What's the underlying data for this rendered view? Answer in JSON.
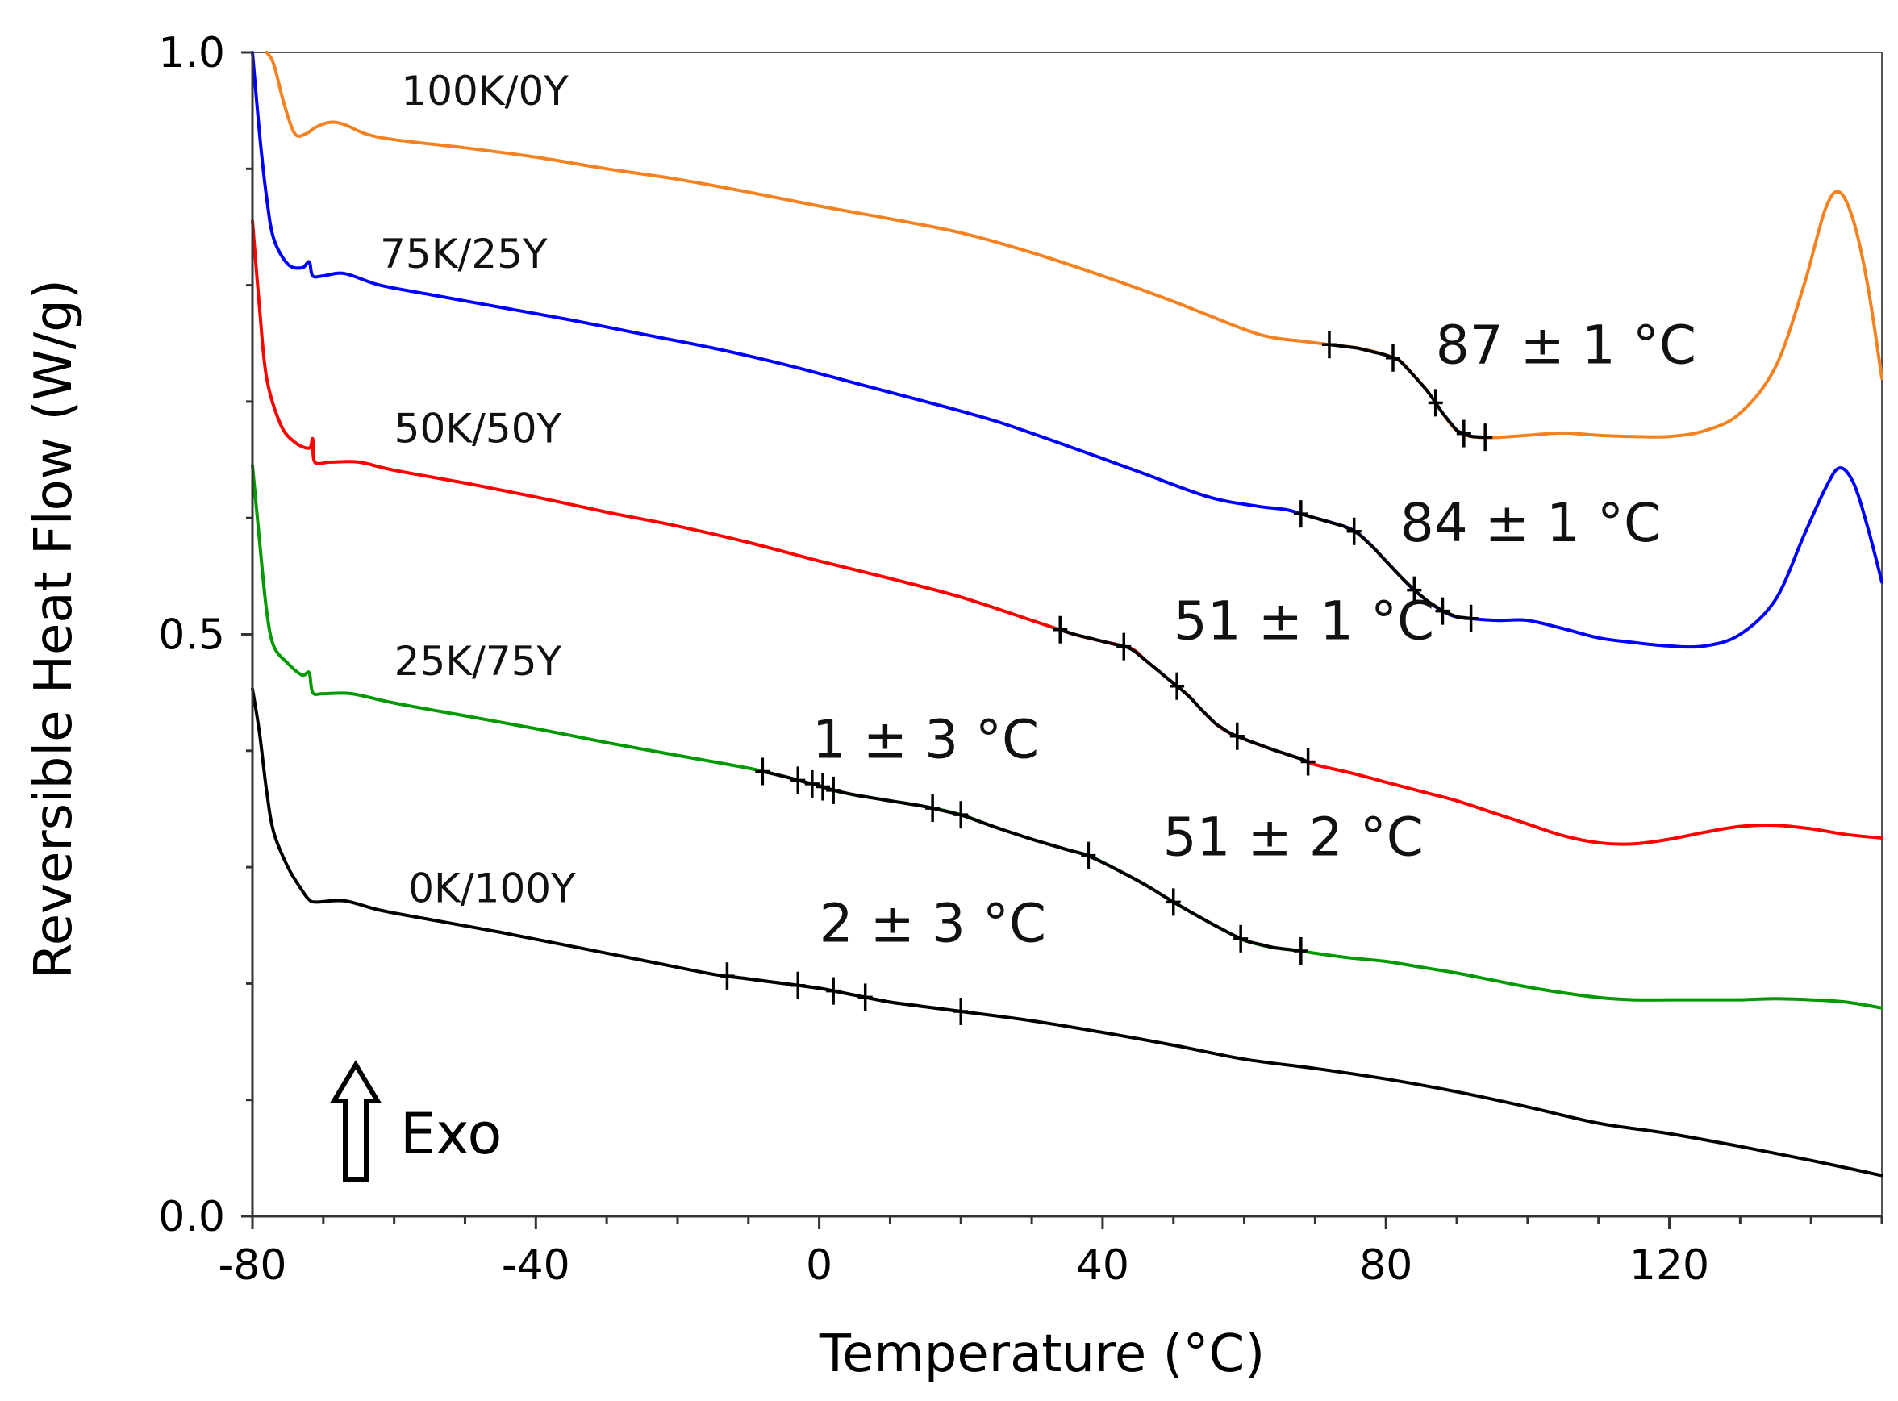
{
  "chart_data": {
    "type": "line",
    "title": "",
    "xlabel": "Temperature (°C)",
    "ylabel": "Reversible Heat Flow (W/g)",
    "xlim": [
      -80,
      150
    ],
    "ylim": [
      0.0,
      1.0
    ],
    "x_ticks": [
      {
        "value": -80,
        "label": "-80"
      },
      {
        "value": -40,
        "label": "-40"
      },
      {
        "value": 0,
        "label": "0"
      },
      {
        "value": 40,
        "label": "40"
      },
      {
        "value": 80,
        "label": "80"
      },
      {
        "value": 120,
        "label": "120"
      }
    ],
    "y_ticks": [
      {
        "value": 0.0,
        "label": "0.0"
      },
      {
        "value": 0.5,
        "label": "0.5"
      },
      {
        "value": 1.0,
        "label": "1.0"
      }
    ],
    "series": [
      {
        "name": "100K/0Y",
        "color": "#f58220",
        "label_pos": [
          -59,
          0.955
        ],
        "points": [
          [
            -78,
            1.0
          ],
          [
            -77,
            0.99
          ],
          [
            -75.5,
            0.955
          ],
          [
            -74,
            0.93
          ],
          [
            -72.5,
            0.93
          ],
          [
            -71,
            0.936
          ],
          [
            -69,
            0.94
          ],
          [
            -67,
            0.938
          ],
          [
            -64,
            0.93
          ],
          [
            -60,
            0.925
          ],
          [
            -50,
            0.918
          ],
          [
            -40,
            0.91
          ],
          [
            -30,
            0.9
          ],
          [
            -20,
            0.891
          ],
          [
            -10,
            0.88
          ],
          [
            0,
            0.868
          ],
          [
            10,
            0.857
          ],
          [
            20,
            0.845
          ],
          [
            30,
            0.828
          ],
          [
            40,
            0.808
          ],
          [
            50,
            0.786
          ],
          [
            60,
            0.762
          ],
          [
            64,
            0.755
          ],
          [
            68,
            0.752
          ],
          [
            72,
            0.749
          ],
          [
            76,
            0.746
          ],
          [
            80,
            0.74
          ],
          [
            82,
            0.735
          ],
          [
            84,
            0.722
          ],
          [
            86,
            0.708
          ],
          [
            88,
            0.69
          ],
          [
            90,
            0.675
          ],
          [
            92,
            0.67
          ],
          [
            95,
            0.669
          ],
          [
            100,
            0.671
          ],
          [
            105,
            0.673
          ],
          [
            110,
            0.671
          ],
          [
            115,
            0.67
          ],
          [
            120,
            0.67
          ],
          [
            125,
            0.675
          ],
          [
            130,
            0.69
          ],
          [
            135,
            0.73
          ],
          [
            139,
            0.8
          ],
          [
            142,
            0.865
          ],
          [
            144,
            0.88
          ],
          [
            146,
            0.855
          ],
          [
            148,
            0.8
          ],
          [
            150,
            0.72
          ]
        ]
      },
      {
        "name": "75K/25Y",
        "color": "#0000ff",
        "label_pos": [
          -62,
          0.815
        ],
        "points": [
          [
            -80,
            1.0
          ],
          [
            -79,
            0.93
          ],
          [
            -78,
            0.875
          ],
          [
            -77,
            0.84
          ],
          [
            -75,
            0.818
          ],
          [
            -73,
            0.815
          ],
          [
            -72,
            0.82
          ],
          [
            -71.5,
            0.808
          ],
          [
            -70,
            0.808
          ],
          [
            -67,
            0.81
          ],
          [
            -62,
            0.8
          ],
          [
            -55,
            0.792
          ],
          [
            -45,
            0.781
          ],
          [
            -35,
            0.77
          ],
          [
            -25,
            0.758
          ],
          [
            -15,
            0.746
          ],
          [
            -5,
            0.732
          ],
          [
            5,
            0.716
          ],
          [
            15,
            0.7
          ],
          [
            25,
            0.683
          ],
          [
            35,
            0.662
          ],
          [
            45,
            0.64
          ],
          [
            55,
            0.618
          ],
          [
            62,
            0.61
          ],
          [
            66,
            0.607
          ],
          [
            70,
            0.6
          ],
          [
            74,
            0.593
          ],
          [
            76,
            0.587
          ],
          [
            78,
            0.576
          ],
          [
            80,
            0.563
          ],
          [
            82,
            0.55
          ],
          [
            84,
            0.538
          ],
          [
            86,
            0.528
          ],
          [
            88,
            0.52
          ],
          [
            90,
            0.515
          ],
          [
            93,
            0.513
          ],
          [
            96,
            0.512
          ],
          [
            100,
            0.512
          ],
          [
            105,
            0.505
          ],
          [
            110,
            0.497
          ],
          [
            115,
            0.493
          ],
          [
            120,
            0.49
          ],
          [
            125,
            0.49
          ],
          [
            130,
            0.5
          ],
          [
            135,
            0.53
          ],
          [
            139,
            0.585
          ],
          [
            142,
            0.625
          ],
          [
            144,
            0.643
          ],
          [
            146,
            0.63
          ],
          [
            148,
            0.592
          ],
          [
            150,
            0.545
          ]
        ]
      },
      {
        "name": "50K/50Y",
        "color": "#ff0000",
        "label_pos": [
          -60,
          0.665
        ],
        "points": [
          [
            -80,
            0.855
          ],
          [
            -79,
            0.78
          ],
          [
            -78,
            0.72
          ],
          [
            -76,
            0.68
          ],
          [
            -74,
            0.665
          ],
          [
            -72,
            0.66
          ],
          [
            -71.5,
            0.668
          ],
          [
            -71.2,
            0.648
          ],
          [
            -69,
            0.648
          ],
          [
            -65,
            0.648
          ],
          [
            -60,
            0.641
          ],
          [
            -50,
            0.63
          ],
          [
            -40,
            0.618
          ],
          [
            -30,
            0.605
          ],
          [
            -20,
            0.593
          ],
          [
            -10,
            0.579
          ],
          [
            0,
            0.563
          ],
          [
            10,
            0.548
          ],
          [
            20,
            0.532
          ],
          [
            30,
            0.512
          ],
          [
            36,
            0.5
          ],
          [
            40,
            0.494
          ],
          [
            44,
            0.488
          ],
          [
            46,
            0.478
          ],
          [
            48,
            0.468
          ],
          [
            50,
            0.458
          ],
          [
            52,
            0.448
          ],
          [
            54,
            0.435
          ],
          [
            56,
            0.423
          ],
          [
            58,
            0.415
          ],
          [
            60,
            0.41
          ],
          [
            64,
            0.401
          ],
          [
            68,
            0.393
          ],
          [
            70,
            0.388
          ],
          [
            75,
            0.381
          ],
          [
            80,
            0.373
          ],
          [
            85,
            0.365
          ],
          [
            90,
            0.357
          ],
          [
            95,
            0.347
          ],
          [
            100,
            0.337
          ],
          [
            105,
            0.327
          ],
          [
            110,
            0.321
          ],
          [
            115,
            0.32
          ],
          [
            120,
            0.324
          ],
          [
            125,
            0.33
          ],
          [
            130,
            0.335
          ],
          [
            135,
            0.336
          ],
          [
            140,
            0.333
          ],
          [
            145,
            0.328
          ],
          [
            150,
            0.325
          ]
        ]
      },
      {
        "name": "25K/75Y",
        "color": "#009900",
        "label_pos": [
          -60,
          0.465
        ],
        "points": [
          [
            -80,
            0.645
          ],
          [
            -79,
            0.58
          ],
          [
            -78,
            0.52
          ],
          [
            -77,
            0.49
          ],
          [
            -75,
            0.475
          ],
          [
            -73,
            0.465
          ],
          [
            -72,
            0.467
          ],
          [
            -71.5,
            0.45
          ],
          [
            -70,
            0.449
          ],
          [
            -66,
            0.449
          ],
          [
            -60,
            0.441
          ],
          [
            -50,
            0.43
          ],
          [
            -40,
            0.419
          ],
          [
            -30,
            0.407
          ],
          [
            -20,
            0.396
          ],
          [
            -10,
            0.385
          ],
          [
            -5,
            0.378
          ],
          [
            -2,
            0.373
          ],
          [
            0,
            0.37
          ],
          [
            2,
            0.366
          ],
          [
            5,
            0.362
          ],
          [
            10,
            0.357
          ],
          [
            15,
            0.352
          ],
          [
            20,
            0.345
          ],
          [
            25,
            0.334
          ],
          [
            30,
            0.324
          ],
          [
            35,
            0.315
          ],
          [
            38,
            0.31
          ],
          [
            42,
            0.298
          ],
          [
            46,
            0.285
          ],
          [
            50,
            0.27
          ],
          [
            54,
            0.256
          ],
          [
            58,
            0.243
          ],
          [
            60,
            0.237
          ],
          [
            64,
            0.231
          ],
          [
            68,
            0.228
          ],
          [
            70,
            0.226
          ],
          [
            75,
            0.222
          ],
          [
            80,
            0.219
          ],
          [
            85,
            0.214
          ],
          [
            90,
            0.209
          ],
          [
            95,
            0.203
          ],
          [
            100,
            0.197
          ],
          [
            105,
            0.192
          ],
          [
            110,
            0.188
          ],
          [
            115,
            0.186
          ],
          [
            120,
            0.186
          ],
          [
            125,
            0.186
          ],
          [
            130,
            0.186
          ],
          [
            135,
            0.187
          ],
          [
            140,
            0.186
          ],
          [
            145,
            0.184
          ],
          [
            150,
            0.179
          ]
        ]
      },
      {
        "name": "0K/100Y",
        "color": "#000000",
        "label_pos": [
          -58,
          0.27
        ],
        "points": [
          [
            -80,
            0.453
          ],
          [
            -79,
            0.415
          ],
          [
            -78,
            0.365
          ],
          [
            -77,
            0.33
          ],
          [
            -75,
            0.3
          ],
          [
            -73,
            0.28
          ],
          [
            -72,
            0.272
          ],
          [
            -71,
            0.27
          ],
          [
            -67,
            0.271
          ],
          [
            -62,
            0.263
          ],
          [
            -55,
            0.255
          ],
          [
            -45,
            0.244
          ],
          [
            -35,
            0.232
          ],
          [
            -25,
            0.22
          ],
          [
            -15,
            0.208
          ],
          [
            -10,
            0.204
          ],
          [
            -5,
            0.2
          ],
          [
            0,
            0.196
          ],
          [
            5,
            0.19
          ],
          [
            10,
            0.184
          ],
          [
            15,
            0.18
          ],
          [
            20,
            0.176
          ],
          [
            30,
            0.168
          ],
          [
            40,
            0.158
          ],
          [
            50,
            0.147
          ],
          [
            60,
            0.135
          ],
          [
            70,
            0.127
          ],
          [
            80,
            0.118
          ],
          [
            90,
            0.107
          ],
          [
            100,
            0.094
          ],
          [
            110,
            0.08
          ],
          [
            120,
            0.071
          ],
          [
            130,
            0.06
          ],
          [
            140,
            0.048
          ],
          [
            150,
            0.035
          ]
        ]
      }
    ],
    "transition_overlays": [
      {
        "series": "100K/0Y",
        "x_from": 72,
        "x_to": 94
      },
      {
        "series": "75K/25Y",
        "x_from": 68,
        "x_to": 92
      },
      {
        "series": "50K/50Y",
        "x_from": 34,
        "x_to": 69
      },
      {
        "series": "25K/75Y",
        "x_from": -8,
        "x_to": 68
      },
      {
        "series": "0K/100Y",
        "x_from": -13,
        "x_to": 20
      }
    ],
    "tick_marks": [
      {
        "series": "100K/0Y",
        "x": [
          72,
          81,
          87,
          91,
          94
        ]
      },
      {
        "series": "75K/25Y",
        "x": [
          68,
          75.5,
          84,
          88,
          92
        ]
      },
      {
        "series": "50K/50Y",
        "x": [
          34,
          43,
          50.5,
          59,
          69
        ]
      },
      {
        "series": "25K/75Y",
        "x": [
          -8,
          -3,
          -1,
          0.5,
          2,
          16,
          20,
          38,
          50,
          59.5,
          68
        ]
      },
      {
        "series": "0K/100Y",
        "x": [
          -13,
          -3,
          2,
          6.5,
          20
        ]
      }
    ],
    "annotations": [
      {
        "text": "87 ± 1 °C",
        "x": 87,
        "y": 0.733
      },
      {
        "text": "84 ± 1 °C",
        "x": 82,
        "y": 0.58
      },
      {
        "text": "51 ± 1 °C",
        "x": 50,
        "y": 0.496
      },
      {
        "text": "1 ± 3 °C",
        "x": -1,
        "y": 0.394
      },
      {
        "text": "51 ± 2 °C",
        "x": 48.5,
        "y": 0.31
      },
      {
        "text": "2 ± 3 °C",
        "x": 0,
        "y": 0.236
      }
    ],
    "exo_indicator": {
      "label": "Exo",
      "direction": "up"
    },
    "grid": false,
    "legend": "none"
  }
}
